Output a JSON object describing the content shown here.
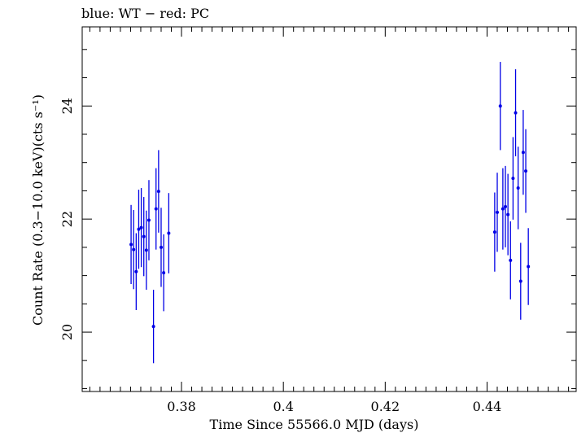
{
  "chart_data": {
    "type": "scatter",
    "title": "blue: WT − red: PC",
    "xlabel": "Time Since 55566.0 MJD (days)",
    "ylabel": "Count Rate (0.3−10.0 keV)(cts s⁻¹)",
    "xlim": [
      0.3605,
      0.4575
    ],
    "ylim": [
      18.95,
      25.4
    ],
    "x_ticks": [
      0.38,
      0.4,
      0.42,
      0.44
    ],
    "x_tick_labels": [
      "0.38",
      "0.4",
      "0.42",
      "0.44"
    ],
    "y_ticks": [
      20,
      22,
      24
    ],
    "y_tick_labels": [
      "20",
      "22",
      "24"
    ],
    "grid": false,
    "series": [
      {
        "name": "WT",
        "color": "#0000e6",
        "points": [
          {
            "x": 0.3701,
            "y": 21.55,
            "err": 0.7
          },
          {
            "x": 0.3706,
            "y": 21.46,
            "err": 0.7
          },
          {
            "x": 0.3711,
            "y": 21.07,
            "err": 0.68
          },
          {
            "x": 0.3716,
            "y": 21.82,
            "err": 0.7
          },
          {
            "x": 0.3721,
            "y": 21.85,
            "err": 0.7
          },
          {
            "x": 0.3726,
            "y": 21.69,
            "err": 0.7
          },
          {
            "x": 0.3731,
            "y": 21.45,
            "err": 0.7
          },
          {
            "x": 0.3736,
            "y": 21.98,
            "err": 0.71
          },
          {
            "x": 0.3745,
            "y": 20.1,
            "err": 0.65
          },
          {
            "x": 0.375,
            "y": 22.18,
            "err": 0.72
          },
          {
            "x": 0.3755,
            "y": 22.49,
            "err": 0.73
          },
          {
            "x": 0.376,
            "y": 21.5,
            "err": 0.7
          },
          {
            "x": 0.3765,
            "y": 21.05,
            "err": 0.68
          },
          {
            "x": 0.3775,
            "y": 21.75,
            "err": 0.71
          },
          {
            "x": 0.4415,
            "y": 21.77,
            "err": 0.7
          },
          {
            "x": 0.442,
            "y": 22.12,
            "err": 0.7
          },
          {
            "x": 0.4426,
            "y": 24.0,
            "err": 0.78
          },
          {
            "x": 0.4431,
            "y": 22.18,
            "err": 0.72
          },
          {
            "x": 0.4436,
            "y": 22.22,
            "err": 0.72
          },
          {
            "x": 0.4441,
            "y": 22.08,
            "err": 0.72
          },
          {
            "x": 0.4446,
            "y": 21.27,
            "err": 0.69
          },
          {
            "x": 0.4451,
            "y": 22.72,
            "err": 0.73
          },
          {
            "x": 0.4456,
            "y": 23.88,
            "err": 0.77
          },
          {
            "x": 0.4461,
            "y": 22.55,
            "err": 0.73
          },
          {
            "x": 0.4466,
            "y": 20.9,
            "err": 0.68
          },
          {
            "x": 0.4471,
            "y": 23.18,
            "err": 0.75
          },
          {
            "x": 0.4476,
            "y": 22.85,
            "err": 0.74
          },
          {
            "x": 0.4481,
            "y": 21.16,
            "err": 0.68
          }
        ]
      }
    ]
  }
}
